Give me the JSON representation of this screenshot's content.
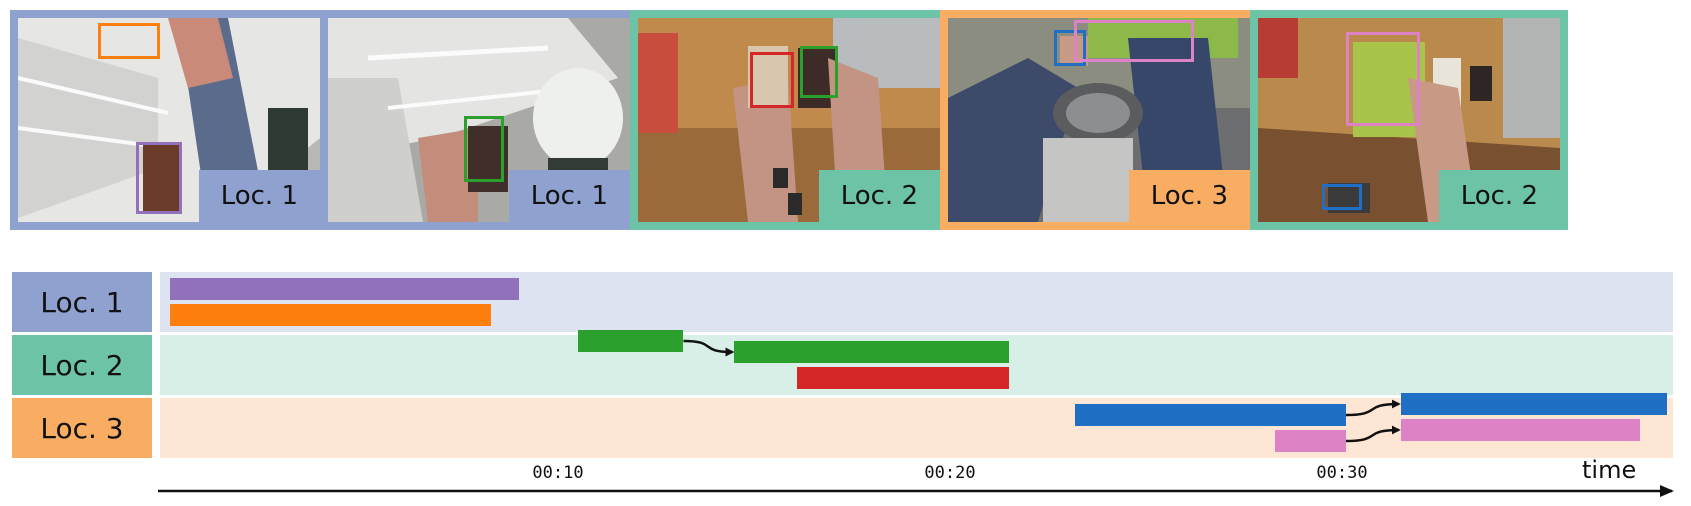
{
  "colors": {
    "loc1": "#8fa1cf",
    "loc2": "#6cc3a6",
    "loc3": "#f8ad63",
    "loc1_lane": "#dde3f1",
    "loc2_lane": "#d7efe6",
    "loc3_lane": "#fde6d3",
    "purple": "#9271bb",
    "orange": "#ff7f0e",
    "green": "#2ca02c",
    "red": "#d62728",
    "blue": "#1f6fc5",
    "pink": "#dc82c5"
  },
  "frames": [
    {
      "label": "Loc. 1",
      "location": "loc1",
      "boxes": [
        "orange",
        "purple"
      ]
    },
    {
      "label": "Loc. 1",
      "location": "loc1",
      "boxes": [
        "green"
      ]
    },
    {
      "label": "Loc. 2",
      "location": "loc2",
      "boxes": [
        "red",
        "green"
      ]
    },
    {
      "label": "Loc. 3",
      "location": "loc3",
      "boxes": [
        "blue",
        "pink"
      ]
    },
    {
      "label": "Loc. 2",
      "location": "loc2",
      "boxes": [
        "pink",
        "blue"
      ]
    }
  ],
  "timeline": {
    "rows": [
      {
        "label": "Loc. 1",
        "location": "loc1"
      },
      {
        "label": "Loc. 2",
        "location": "loc2"
      },
      {
        "label": "Loc. 3",
        "location": "loc3"
      }
    ],
    "ticks": [
      "00:10",
      "00:20",
      "00:30"
    ],
    "axis_label": "time",
    "tick_seconds": [
      10,
      20,
      30
    ],
    "bars": [
      {
        "location": "loc1",
        "color": "purple",
        "start": 0.1,
        "end": 9.0
      },
      {
        "location": "loc1",
        "color": "orange",
        "start": 0.1,
        "end": 8.3
      },
      {
        "location": "loc1",
        "color": "green",
        "start": 10.5,
        "end": 13.2
      },
      {
        "location": "loc2",
        "color": "green",
        "start": 14.5,
        "end": 21.5
      },
      {
        "location": "loc2",
        "color": "red",
        "start": 16.1,
        "end": 21.5
      },
      {
        "location": "loc3",
        "color": "blue",
        "start": 23.2,
        "end": 30.1
      },
      {
        "location": "loc3",
        "color": "pink",
        "start": 28.3,
        "end": 30.1
      },
      {
        "location": "loc2",
        "color": "blue",
        "start": 31.5,
        "end": 38.3
      },
      {
        "location": "loc2",
        "color": "pink",
        "start": 31.5,
        "end": 37.6
      }
    ],
    "transitions": [
      {
        "color": "green",
        "from_location": "loc1",
        "to_location": "loc2"
      },
      {
        "color": "blue",
        "from_location": "loc3",
        "to_location": "loc2"
      },
      {
        "color": "pink",
        "from_location": "loc3",
        "to_location": "loc2"
      }
    ]
  }
}
